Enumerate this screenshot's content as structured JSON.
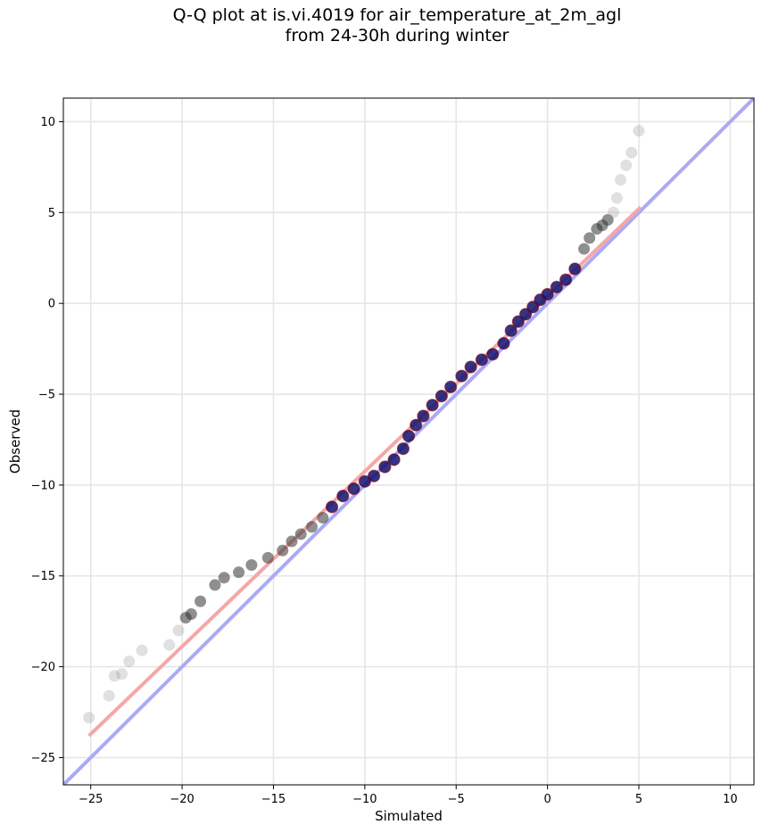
{
  "chart_data": {
    "type": "scatter",
    "title_line1": "Q-Q plot at is.vi.4019 for air_temperature_at_2m_agl",
    "title_line2": "from 24-30h during winter",
    "xlabel": "Simulated",
    "ylabel": "Observed",
    "xlim": [
      -26.5,
      11.3
    ],
    "ylim": [
      -26.5,
      11.3
    ],
    "xticks": [
      -25,
      -20,
      -15,
      -10,
      -5,
      0,
      5,
      10
    ],
    "yticks": [
      -25,
      -20,
      -15,
      -10,
      -5,
      0,
      5,
      10
    ],
    "xtick_labels": [
      "−25",
      "−20",
      "−15",
      "−10",
      "−5",
      "0",
      "5",
      "10"
    ],
    "ytick_labels": [
      "−25",
      "−20",
      "−15",
      "−10",
      "−5",
      "0",
      "5",
      "10"
    ],
    "grid": true,
    "identity_line": {
      "color": "#aaaaf5"
    },
    "fit_line": {
      "color": "#f5a7a7",
      "x": [
        -25.1,
        5.1
      ],
      "y": [
        -23.8,
        5.3
      ]
    },
    "quantile_curve": {
      "x": [
        -25.1,
        -24.0,
        -23.7,
        -23.3,
        -22.9,
        -22.2,
        -20.7,
        -20.2,
        -19.8,
        -19.5,
        -19.0,
        -18.2,
        -17.7,
        -16.9,
        -16.2,
        -15.3,
        -14.5,
        -14.0,
        -13.5,
        -12.9,
        -12.3,
        -11.8,
        -11.2,
        -10.6,
        -10.0,
        -9.5,
        -8.9,
        -8.4,
        -7.9,
        -7.6,
        -7.2,
        -6.8,
        -6.3,
        -5.8,
        -5.3,
        -4.7,
        -4.2,
        -3.6,
        -3.0,
        -2.4,
        -2.0,
        -1.6,
        -1.2,
        -0.8,
        -0.4,
        0.0,
        0.5,
        1.0,
        1.5,
        2.0,
        2.3,
        2.7,
        3.0,
        3.3,
        3.6,
        3.8,
        4.0,
        4.3,
        4.6,
        5.0
      ],
      "y": [
        -22.8,
        -21.6,
        -20.5,
        -20.4,
        -19.7,
        -19.1,
        -18.8,
        -18.0,
        -17.3,
        -17.1,
        -16.4,
        -15.5,
        -15.1,
        -14.8,
        -14.4,
        -14.0,
        -13.6,
        -13.1,
        -12.7,
        -12.3,
        -11.8,
        -11.2,
        -10.6,
        -10.2,
        -9.8,
        -9.5,
        -9.0,
        -8.6,
        -8.0,
        -7.3,
        -6.7,
        -6.2,
        -5.6,
        -5.1,
        -4.6,
        -4.0,
        -3.5,
        -3.1,
        -2.8,
        -2.2,
        -1.5,
        -1.0,
        -0.6,
        -0.2,
        0.2,
        0.5,
        0.9,
        1.3,
        1.9,
        3.0,
        3.6,
        4.1,
        4.3,
        4.6,
        5.0,
        5.8,
        6.8,
        7.6,
        8.3,
        9.5
      ]
    },
    "point_colors": {
      "outer": "#999999",
      "middle": "#333333",
      "core": "#101070",
      "core_edge": "#8b0000"
    }
  }
}
